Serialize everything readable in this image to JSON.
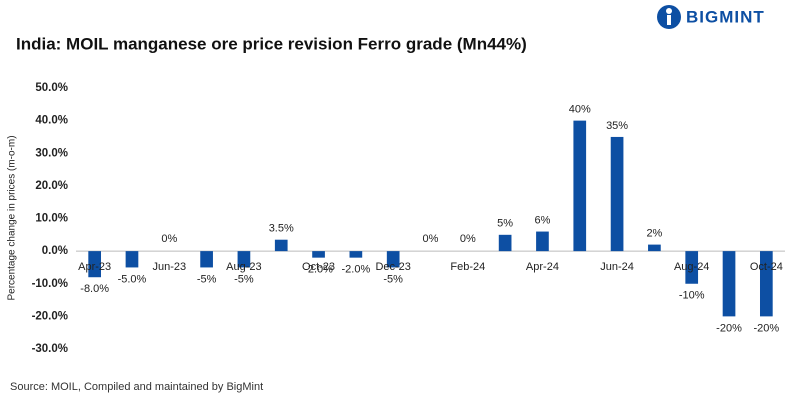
{
  "brand": "BIGMINT",
  "source": "Source: MOIL, Compiled and maintained by BigMint",
  "chart_data": {
    "type": "bar",
    "title": "India: MOIL manganese ore price revision Ferro grade (Mn44%)",
    "y_label": "Percentage change in prices (m-o-m)",
    "categories": [
      "Apr-23",
      null,
      "Jun-23",
      null,
      "Aug-23",
      null,
      "Oct-23",
      null,
      "Dec-23",
      null,
      "Feb-24",
      null,
      "Apr-24",
      null,
      "Jun-24",
      null,
      "Aug-24",
      null,
      "Oct-24"
    ],
    "values": [
      -8,
      -5,
      0,
      -5,
      -5,
      3.5,
      -2,
      -2,
      -5,
      0,
      0,
      5,
      6,
      40,
      35,
      2,
      -10,
      -20,
      -20
    ],
    "value_labels": [
      "-8.0%",
      "-5.0%",
      "0%",
      "-5%",
      "-5%",
      "3.5%",
      "-2.0%",
      "-2.0%",
      "-5%",
      "0%",
      "0%",
      "5%",
      "6%",
      "40%",
      "35%",
      "2%",
      "-10%",
      "-20%",
      "-20%"
    ],
    "color": "#0d4fa3",
    "ylim": [
      -30,
      50
    ],
    "yticks": [
      {
        "value": -30,
        "label": "-30.0%"
      },
      {
        "value": -20,
        "label": "-20.0%"
      },
      {
        "value": -10,
        "label": "-10.0%"
      },
      {
        "value": 0,
        "label": "0.0%"
      },
      {
        "value": 10,
        "label": "10.0%"
      },
      {
        "value": 20,
        "label": "20.0%"
      },
      {
        "value": 30,
        "label": "30.0%"
      },
      {
        "value": 40,
        "label": "40.0%"
      },
      {
        "value": 50,
        "label": "50.0%"
      }
    ],
    "grid": false
  }
}
